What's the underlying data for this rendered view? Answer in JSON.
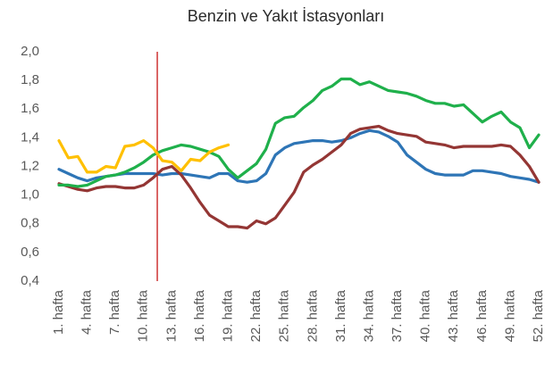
{
  "chart_data": {
    "type": "line",
    "title": "Benzin ve Yakıt İstasyonları",
    "categories": [
      "1. hafta",
      null,
      null,
      "4. hafta",
      null,
      null,
      "7. hafta",
      null,
      null,
      "10. hafta",
      null,
      null,
      "13. hafta",
      null,
      null,
      "16. hafta",
      null,
      null,
      "19. hafta",
      null,
      null,
      "22. hafta",
      null,
      null,
      "25. hafta",
      null,
      null,
      "28. hafta",
      null,
      null,
      "31. hafta",
      null,
      null,
      "34. hafta",
      null,
      null,
      "37. hafta",
      null,
      null,
      "40. hafta",
      null,
      null,
      "43. hafta",
      null,
      null,
      "46. hafta",
      null,
      null,
      "49. hafta",
      null,
      null,
      "52. hafta"
    ],
    "series": [
      {
        "color": "#2e75b6",
        "values": [
          1.18,
          1.15,
          1.12,
          1.1,
          1.12,
          1.13,
          1.14,
          1.15,
          1.15,
          1.15,
          1.15,
          1.14,
          1.15,
          1.15,
          1.14,
          1.13,
          1.12,
          1.15,
          1.15,
          1.1,
          1.09,
          1.1,
          1.15,
          1.28,
          1.33,
          1.36,
          1.37,
          1.38,
          1.38,
          1.37,
          1.38,
          1.4,
          1.43,
          1.45,
          1.44,
          1.41,
          1.37,
          1.28,
          1.23,
          1.18,
          1.15,
          1.14,
          1.14,
          1.14,
          1.17,
          1.17,
          1.16,
          1.15,
          1.13,
          1.12,
          1.11,
          1.09
        ]
      },
      {
        "color": "#943634",
        "values": [
          1.08,
          1.06,
          1.04,
          1.03,
          1.05,
          1.06,
          1.06,
          1.05,
          1.05,
          1.07,
          1.12,
          1.18,
          1.2,
          1.14,
          1.05,
          0.95,
          0.86,
          0.82,
          0.78,
          0.78,
          0.77,
          0.82,
          0.8,
          0.84,
          0.93,
          1.02,
          1.16,
          1.21,
          1.25,
          1.3,
          1.35,
          1.43,
          1.46,
          1.47,
          1.48,
          1.45,
          1.43,
          1.42,
          1.41,
          1.37,
          1.36,
          1.35,
          1.33,
          1.34,
          1.34,
          1.34,
          1.34,
          1.35,
          1.34,
          1.28,
          1.2,
          1.09
        ]
      },
      {
        "color": "#1fb04b",
        "values": [
          1.07,
          1.07,
          1.06,
          1.07,
          1.1,
          1.13,
          1.14,
          1.16,
          1.19,
          1.23,
          1.28,
          1.31,
          1.33,
          1.35,
          1.34,
          1.32,
          1.3,
          1.27,
          1.18,
          1.12,
          1.17,
          1.22,
          1.32,
          1.5,
          1.54,
          1.55,
          1.61,
          1.66,
          1.73,
          1.76,
          1.81,
          1.81,
          1.77,
          1.79,
          1.76,
          1.73,
          1.72,
          1.71,
          1.69,
          1.66,
          1.64,
          1.64,
          1.62,
          1.63,
          1.57,
          1.51,
          1.55,
          1.58,
          1.51,
          1.47,
          1.33,
          1.42
        ]
      },
      {
        "color": "#ffc000",
        "values": [
          1.38,
          1.26,
          1.27,
          1.16,
          1.16,
          1.2,
          1.19,
          1.34,
          1.35,
          1.38,
          1.33,
          1.24,
          1.23,
          1.17,
          1.25,
          1.24,
          1.3,
          1.33,
          1.35,
          null,
          null,
          null,
          null,
          null,
          null,
          null,
          null,
          null,
          null,
          null,
          null,
          null,
          null,
          null,
          null,
          null,
          null,
          null,
          null,
          null,
          null,
          null,
          null,
          null,
          null,
          null,
          null,
          null,
          null,
          null,
          null,
          null
        ]
      }
    ],
    "ylim": [
      0.4,
      2.0
    ],
    "yticks": [
      {
        "value": 0.4,
        "label": "0,4"
      },
      {
        "value": 0.6,
        "label": "0,6"
      },
      {
        "value": 0.8,
        "label": "0,8"
      },
      {
        "value": 1.0,
        "label": "1,0"
      },
      {
        "value": 1.2,
        "label": "1,2"
      },
      {
        "value": 1.4,
        "label": "1,4"
      },
      {
        "value": 1.6,
        "label": "1,6"
      },
      {
        "value": 1.8,
        "label": "1,8"
      },
      {
        "value": 2.0,
        "label": "2,0"
      }
    ],
    "grid": false,
    "vline": {
      "x": 11.45,
      "color": "#c00000"
    }
  }
}
